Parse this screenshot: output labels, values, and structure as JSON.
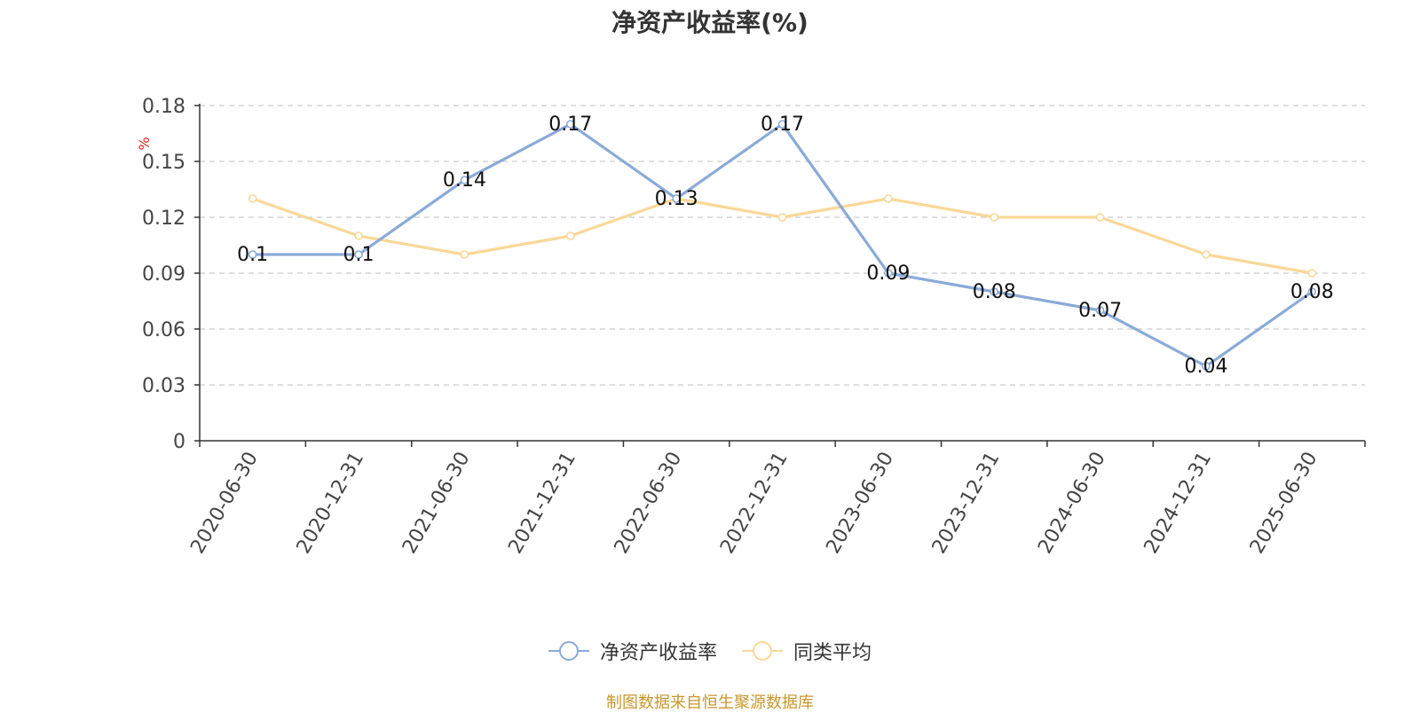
{
  "title": "净资产收益率(%)",
  "source": "制图数据来自恒生聚源数据库",
  "chart_data": {
    "type": "line",
    "categories": [
      "2020-06-30",
      "2020-12-31",
      "2021-06-30",
      "2021-12-31",
      "2022-06-30",
      "2022-12-31",
      "2023-06-30",
      "2023-12-31",
      "2024-06-30",
      "2024-12-31",
      "2025-06-30"
    ],
    "ylabel": "%",
    "ylim": [
      0,
      0.18
    ],
    "yticks": [
      "0",
      "0.03",
      "0.06",
      "0.09",
      "0.12",
      "0.15",
      "0.18"
    ],
    "grid": true,
    "legend_position": "bottom-center",
    "series": [
      {
        "name": "净资产收益率",
        "color": "#8aaad8",
        "values": [
          0.1,
          0.1,
          0.14,
          0.17,
          0.13,
          0.17,
          0.09,
          0.08,
          0.07,
          0.04,
          0.08
        ],
        "labels": [
          "0.1",
          "0.1",
          "0.14",
          "0.17",
          "0.13",
          "0.17",
          "0.09",
          "0.08",
          "0.07",
          "0.04",
          "0.08"
        ]
      },
      {
        "name": "同类平均",
        "color": "#f9d898",
        "values": [
          0.13,
          0.11,
          0.1,
          0.11,
          0.13,
          0.12,
          0.13,
          0.12,
          0.12,
          0.1,
          0.09
        ]
      }
    ]
  }
}
